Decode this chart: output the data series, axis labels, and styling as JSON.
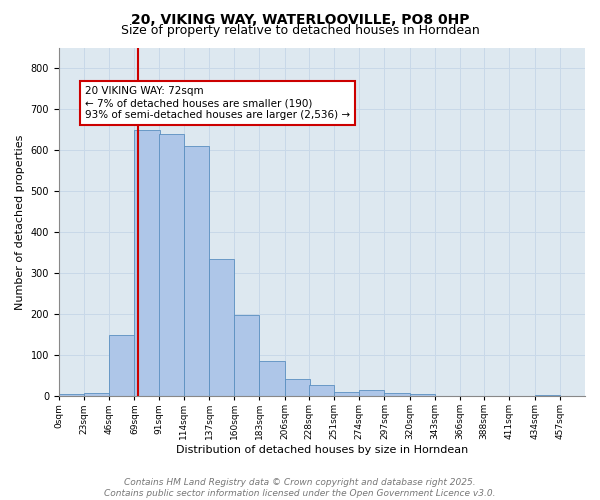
{
  "title1": "20, VIKING WAY, WATERLOOVILLE, PO8 0HP",
  "title2": "Size of property relative to detached houses in Horndean",
  "xlabel": "Distribution of detached houses by size in Horndean",
  "ylabel": "Number of detached properties",
  "bin_labels": [
    "0sqm",
    "23sqm",
    "46sqm",
    "69sqm",
    "91sqm",
    "114sqm",
    "137sqm",
    "160sqm",
    "183sqm",
    "206sqm",
    "228sqm",
    "251sqm",
    "274sqm",
    "297sqm",
    "320sqm",
    "343sqm",
    "366sqm",
    "388sqm",
    "411sqm",
    "434sqm",
    "457sqm"
  ],
  "bin_edges": [
    0,
    23,
    46,
    69,
    91,
    114,
    137,
    160,
    183,
    206,
    228,
    251,
    274,
    297,
    320,
    343,
    366,
    388,
    411,
    434,
    457
  ],
  "bar_heights": [
    5,
    7,
    148,
    650,
    640,
    610,
    335,
    198,
    85,
    42,
    27,
    10,
    14,
    8,
    5,
    0,
    0,
    0,
    0,
    3
  ],
  "bar_color": "#aec6e8",
  "bar_edgecolor": "#5a8fc0",
  "property_size": 72,
  "vline_color": "#cc0000",
  "annotation_text": "20 VIKING WAY: 72sqm\n← 7% of detached houses are smaller (190)\n93% of semi-detached houses are larger (2,536) →",
  "annotation_box_edgecolor": "#cc0000",
  "ylim": [
    0,
    850
  ],
  "yticks": [
    0,
    100,
    200,
    300,
    400,
    500,
    600,
    700,
    800
  ],
  "grid_color": "#c8d8e8",
  "bg_color": "#dde8f0",
  "footer1": "Contains HM Land Registry data © Crown copyright and database right 2025.",
  "footer2": "Contains public sector information licensed under the Open Government Licence v3.0.",
  "title_fontsize": 10,
  "subtitle_fontsize": 9,
  "label_fontsize": 8,
  "tick_fontsize": 7,
  "footer_fontsize": 6.5
}
